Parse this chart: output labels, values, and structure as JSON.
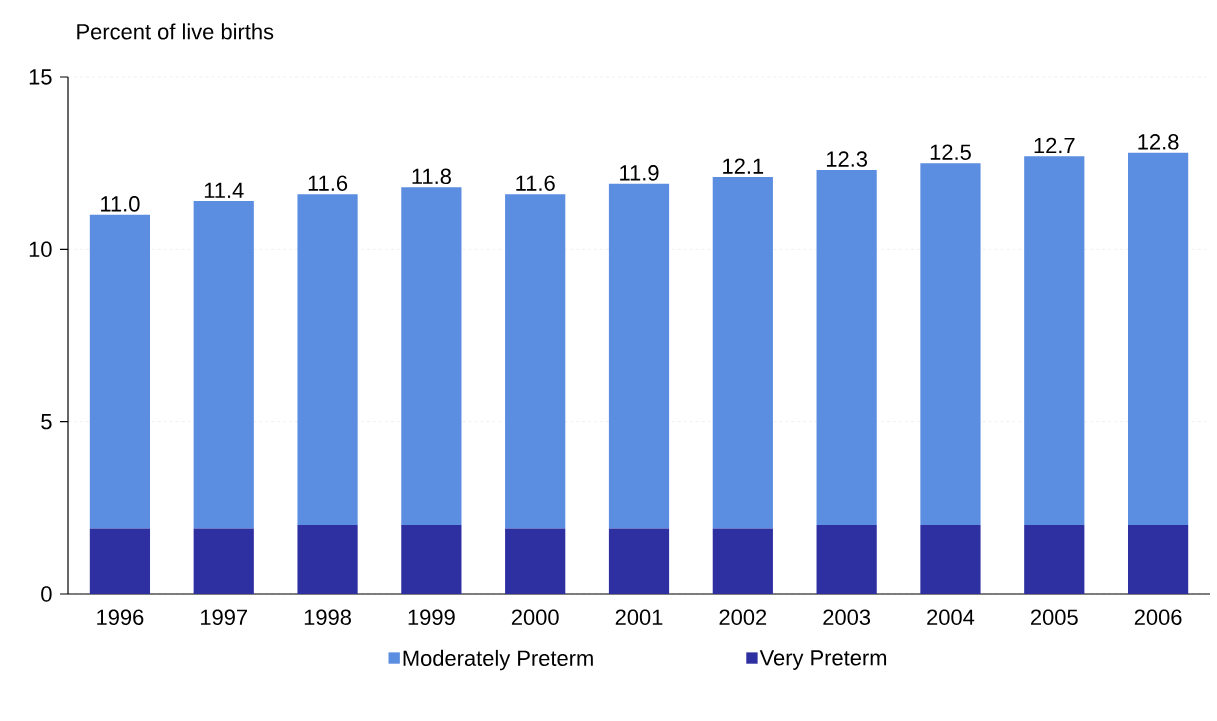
{
  "chart_data": {
    "type": "bar",
    "stacked": true,
    "ylabel": "Percent of live births",
    "categories": [
      "1996",
      "1997",
      "1998",
      "1999",
      "2000",
      "2001",
      "2002",
      "2003",
      "2004",
      "2005",
      "2006"
    ],
    "series": [
      {
        "name": "Very Preterm",
        "color": "#2e2fa0",
        "values": [
          1.9,
          1.9,
          2.0,
          2.0,
          1.9,
          1.9,
          1.9,
          2.0,
          2.0,
          2.0,
          2.0
        ]
      },
      {
        "name": "Moderately Preterm",
        "color": "#5b8de0",
        "values": [
          9.1,
          9.5,
          9.6,
          9.8,
          9.7,
          10.0,
          10.2,
          10.3,
          10.5,
          10.7,
          10.8
        ]
      }
    ],
    "totals": [
      "11.0",
      "11.4",
      "11.6",
      "11.8",
      "11.6",
      "11.9",
      "12.1",
      "12.3",
      "12.5",
      "12.7",
      "12.8"
    ],
    "ylim": [
      0,
      15
    ],
    "yticks": [
      0,
      5,
      10,
      15
    ],
    "grid": "y",
    "legend": "bottom"
  }
}
